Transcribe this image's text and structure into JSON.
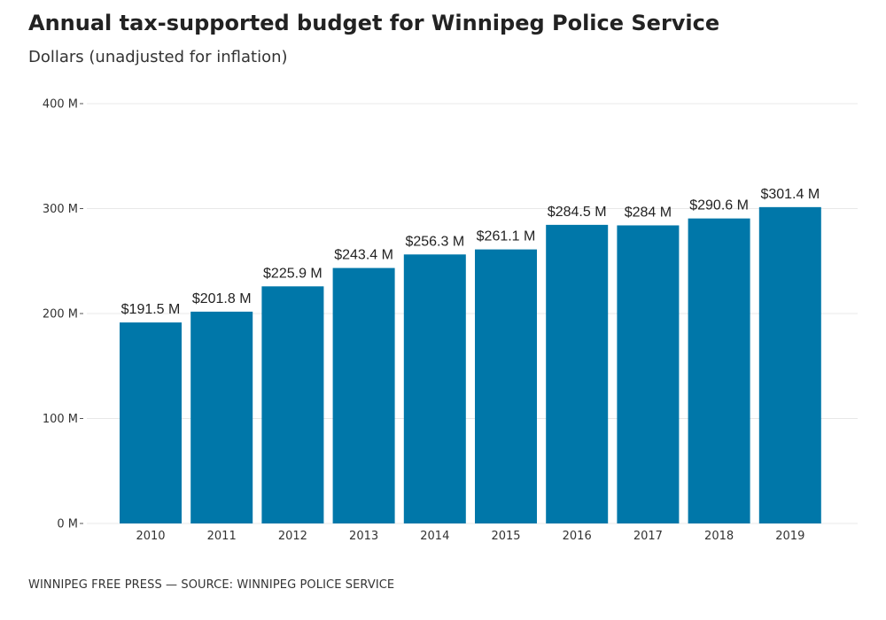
{
  "header": {
    "title": "Annual tax-supported budget for Winnipeg Police Service",
    "subtitle": "Dollars (unadjusted for inflation)"
  },
  "footer": {
    "credit": "WINNIPEG FREE PRESS — SOURCE: WINNIPEG POLICE SERVICE"
  },
  "colors": {
    "bar": "#0077a9",
    "grid": "#e8e8e8"
  },
  "chart_data": {
    "type": "bar",
    "title": "Annual tax-supported budget for Winnipeg Police Service",
    "subtitle": "Dollars (unadjusted for inflation)",
    "xlabel": "",
    "ylabel": "",
    "categories": [
      "2010",
      "2011",
      "2012",
      "2013",
      "2014",
      "2015",
      "2016",
      "2017",
      "2018",
      "2019"
    ],
    "values": [
      191.5,
      201.8,
      225.9,
      243.4,
      256.3,
      261.1,
      284.5,
      284,
      290.6,
      301.4
    ],
    "data_labels": [
      "$191.5 M",
      "$201.8 M",
      "$225.9 M",
      "$243.4 M",
      "$256.3 M",
      "$261.1 M",
      "$284.5 M",
      "$284 M",
      "$290.6 M",
      "$301.4 M"
    ],
    "ylim": [
      0,
      400
    ],
    "y_ticks": [
      0,
      100,
      200,
      300,
      400
    ],
    "y_tick_labels": [
      "0 M",
      "100 M",
      "200 M",
      "300 M",
      "400 M"
    ],
    "grid": true,
    "legend": "none"
  }
}
